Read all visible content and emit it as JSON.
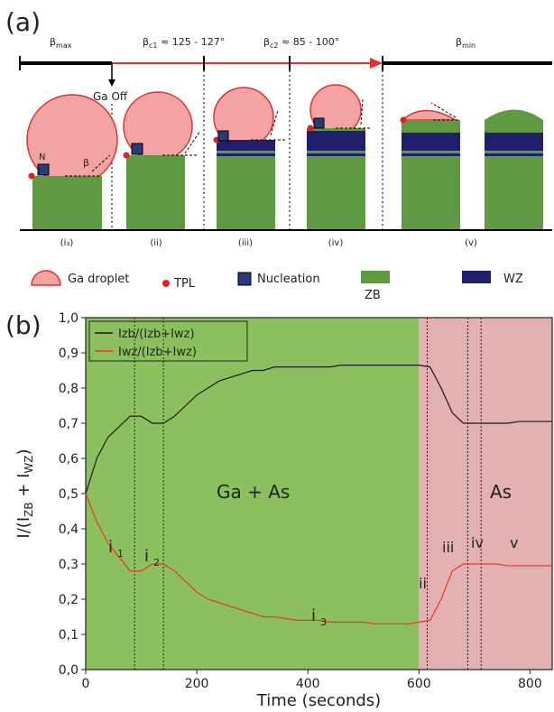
{
  "panel_a": {
    "label": "(a)",
    "beta_max": {
      "base": "β",
      "sub": "max"
    },
    "beta_c1": {
      "base": "β",
      "sub": "c1",
      "rest": " ≈ 125 - 127°"
    },
    "beta_c2": {
      "base": "β",
      "sub": "c2",
      "rest": " ≈ 85 - 100°"
    },
    "beta_min": {
      "base": "β",
      "sub": "min"
    },
    "ga_off": "Ga Off",
    "n_label": "N",
    "beta_label": "β",
    "stages": [
      "(i₃)",
      "(ii)",
      "(iii)",
      "(iv)",
      "(v)"
    ],
    "legend": [
      "Ga droplet",
      "TPL",
      "Nucleation",
      "ZB",
      "WZ"
    ]
  },
  "chart_data": {
    "type": "line",
    "panel_label": "(b)",
    "x_label": "Time (seconds)",
    "y_label": [
      {
        "t": "I/(I",
        "sub": false
      },
      {
        "t": "ZB",
        "sub": true
      },
      {
        "t": " + I",
        "sub": false
      },
      {
        "t": "WZ",
        "sub": true
      },
      {
        "t": ")",
        "sub": false
      }
    ],
    "x": [
      0,
      20,
      40,
      60,
      80,
      100,
      120,
      140,
      160,
      180,
      200,
      220,
      240,
      260,
      280,
      300,
      320,
      340,
      360,
      380,
      400,
      420,
      440,
      460,
      480,
      500,
      520,
      540,
      560,
      580,
      600,
      620,
      640,
      660,
      680,
      700,
      720,
      740,
      760,
      780,
      800,
      820,
      840
    ],
    "series": [
      {
        "name": "Izb/(Izb+Iwz)",
        "color": "#1a1a1a",
        "values": [
          0.5,
          0.6,
          0.66,
          0.69,
          0.72,
          0.72,
          0.7,
          0.7,
          0.72,
          0.75,
          0.78,
          0.8,
          0.82,
          0.83,
          0.84,
          0.85,
          0.85,
          0.86,
          0.86,
          0.86,
          0.86,
          0.86,
          0.86,
          0.865,
          0.865,
          0.865,
          0.865,
          0.865,
          0.865,
          0.865,
          0.865,
          0.86,
          0.8,
          0.73,
          0.7,
          0.7,
          0.7,
          0.7,
          0.7,
          0.705,
          0.705,
          0.705,
          0.705
        ]
      },
      {
        "name": "Iwz/(Izb+Iwz)",
        "color": "#e8392a",
        "values": [
          0.5,
          0.42,
          0.36,
          0.32,
          0.28,
          0.28,
          0.3,
          0.3,
          0.28,
          0.25,
          0.22,
          0.2,
          0.19,
          0.18,
          0.17,
          0.16,
          0.15,
          0.15,
          0.145,
          0.14,
          0.14,
          0.14,
          0.135,
          0.135,
          0.135,
          0.135,
          0.13,
          0.13,
          0.13,
          0.13,
          0.135,
          0.14,
          0.2,
          0.28,
          0.3,
          0.3,
          0.3,
          0.3,
          0.295,
          0.295,
          0.295,
          0.295,
          0.295
        ]
      }
    ],
    "xlim": [
      0,
      840
    ],
    "ylim": [
      0,
      1
    ],
    "xticks": [
      0,
      200,
      400,
      600,
      800
    ],
    "yticks": [
      {
        "value": 0,
        "label": "0,0"
      },
      {
        "value": 0.1,
        "label": "0,1"
      },
      {
        "value": 0.2,
        "label": "0,2"
      },
      {
        "value": 0.3,
        "label": "0,3"
      },
      {
        "value": 0.4,
        "label": "0,4"
      },
      {
        "value": 0.5,
        "label": "0,5"
      },
      {
        "value": 0.6,
        "label": "0,6"
      },
      {
        "value": 0.7,
        "label": "0,7"
      },
      {
        "value": 0.8,
        "label": "0,8"
      },
      {
        "value": 0.9,
        "label": "0,9"
      },
      {
        "value": 1,
        "label": "1,0"
      }
    ],
    "regions": [
      {
        "from": 0,
        "to": 600,
        "color": "#8cbf5e"
      },
      {
        "from": 600,
        "to": 840,
        "color": "#e3b1b1"
      }
    ],
    "markers": [
      88,
      140,
      615,
      688,
      712
    ],
    "annotations": [
      "Ga + As",
      "As",
      "i",
      "1",
      "i",
      "2",
      "i",
      "3",
      "ii",
      "iii",
      "iv",
      "v"
    ],
    "legend": "upper left"
  }
}
